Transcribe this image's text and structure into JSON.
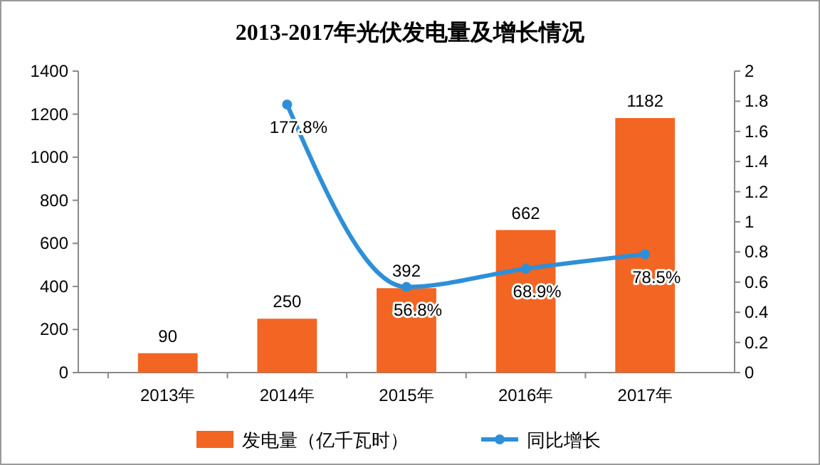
{
  "chart_data": {
    "type": "bar",
    "title": "2013-2017年光伏发电量及增长情况",
    "categories": [
      "2013年",
      "2014年",
      "2015年",
      "2016年",
      "2017年"
    ],
    "series": [
      {
        "name": "发电量（亿千瓦时）",
        "type": "bar",
        "color": "#f26522",
        "values": [
          90,
          250,
          392,
          662,
          1182
        ],
        "value_labels": [
          "90",
          "250",
          "392",
          "662",
          "1182"
        ]
      },
      {
        "name": "同比增长",
        "type": "line",
        "axis": "y2",
        "color": "#2e8fd8",
        "marker": "circle",
        "values": [
          null,
          1.778,
          0.568,
          0.689,
          0.785
        ],
        "value_labels": [
          null,
          "177.8%",
          "56.8%",
          "68.9%",
          "78.5%"
        ]
      }
    ],
    "ylim": [
      0,
      1400
    ],
    "yticks": [
      0,
      200,
      400,
      600,
      800,
      1000,
      1200,
      1400
    ],
    "y2lim": [
      0,
      2
    ],
    "y2ticks": [
      0,
      0.2,
      0.4,
      0.6,
      0.8,
      1,
      1.2,
      1.4,
      1.6,
      1.8,
      2
    ],
    "legend": "bottom"
  }
}
